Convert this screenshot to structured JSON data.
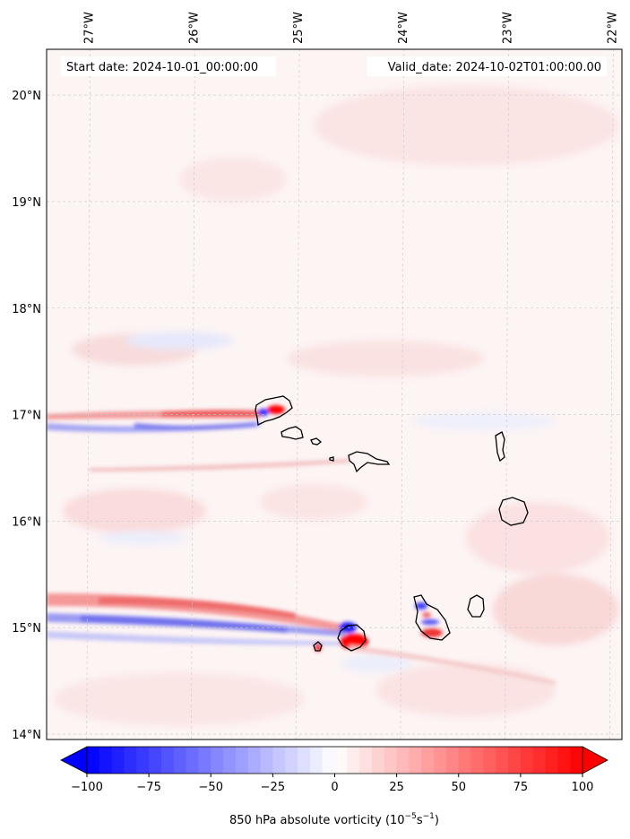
{
  "map": {
    "lon_labels": [
      "27°W",
      "26°W",
      "25°W",
      "24°W",
      "23°W",
      "22°W"
    ],
    "lat_labels": [
      "20°N",
      "19°N",
      "18°N",
      "17°N",
      "16°N",
      "15°N",
      "14°N"
    ],
    "lon_range": [
      -27.4,
      -21.9
    ],
    "lat_range": [
      13.95,
      20.43
    ],
    "start_date_label": "Start date: 2024-10-01_00:00:00",
    "valid_date_label": "Valid_date: 2024-10-02T01:00:00.00",
    "gridlines": "dashed, light gray",
    "colors": {
      "positive": "#ff0000",
      "negative": "#0000ff",
      "coastline": "#000000",
      "background_tint": "#fdf4f4"
    }
  },
  "colorbar": {
    "ticks": [
      "−100",
      "−75",
      "−50",
      "−25",
      "0",
      "25",
      "50",
      "75",
      "100"
    ],
    "tick_values": [
      -100,
      -75,
      -50,
      -25,
      0,
      25,
      50,
      75,
      100
    ],
    "range": [
      -100,
      100
    ],
    "extend": "both",
    "cmap": "bwr",
    "label_main": "850 hPa absolute vorticity (10",
    "label_exp1": "−5",
    "label_mid": "s",
    "label_exp2": "−1",
    "label_end": ")"
  }
}
